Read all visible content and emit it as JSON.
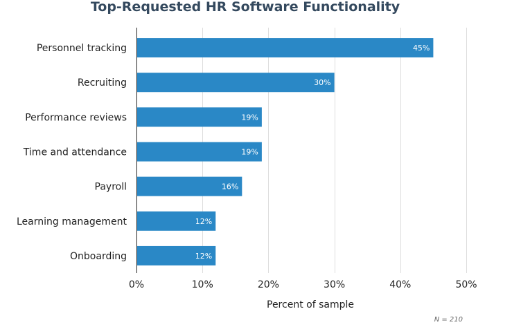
{
  "chart_data": {
    "type": "bar",
    "orientation": "horizontal",
    "title": "Top-Requested HR Software Functionality",
    "categories": [
      "Personnel tracking",
      "Recruiting",
      "Performance reviews",
      "Time and attendance",
      "Payroll",
      "Learning management",
      "Onboarding"
    ],
    "values": [
      45,
      30,
      19,
      19,
      16,
      12,
      12
    ],
    "value_labels": [
      "45%",
      "30%",
      "19%",
      "19%",
      "16%",
      "12%",
      "12%"
    ],
    "xlabel": "Percent of sample",
    "ylabel": "",
    "xlim": [
      0,
      50
    ],
    "xticks": [
      0,
      10,
      20,
      30,
      40,
      50
    ],
    "xtick_labels": [
      "0%",
      "10%",
      "20%",
      "30%",
      "40%",
      "50%"
    ],
    "grid": true,
    "legend": "none",
    "bar_color": "#2a88c6",
    "note": "N = 210"
  }
}
